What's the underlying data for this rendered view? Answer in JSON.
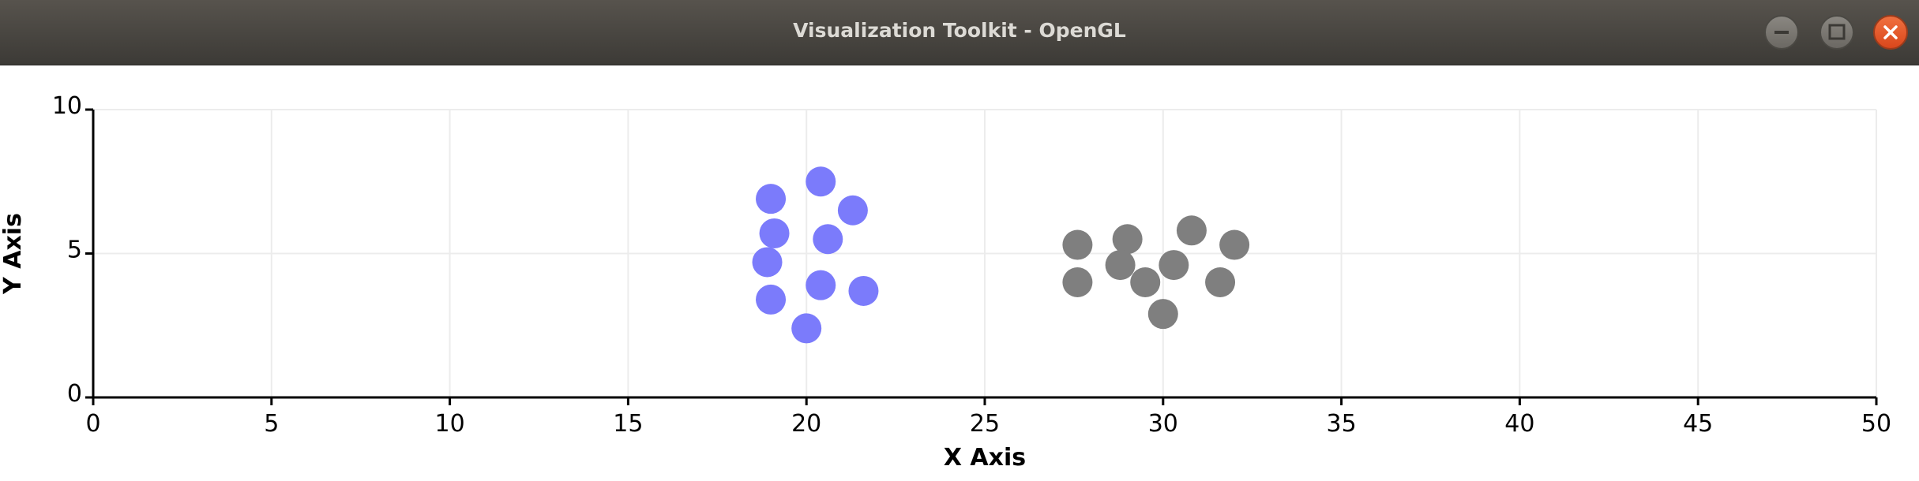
{
  "window": {
    "title": "Visualization Toolkit - OpenGL",
    "buttons": [
      "minimize",
      "maximize",
      "close"
    ]
  },
  "colors": {
    "series_1": "#7b7bfb",
    "series_2": "#7f7f7f",
    "axis": "#000000",
    "grid": "#ececec",
    "titlebar": "#4a4843",
    "close_button": "#e4572c"
  },
  "chart_data": {
    "type": "scatter",
    "title": "",
    "xlabel": "X Axis",
    "ylabel": "Y Axis",
    "xlim": [
      0,
      50
    ],
    "ylim": [
      0,
      10
    ],
    "x_ticks": [
      0,
      5,
      10,
      15,
      20,
      25,
      30,
      35,
      40,
      45,
      50
    ],
    "y_ticks": [
      0,
      5,
      10
    ],
    "grid": true,
    "series": [
      {
        "color": "#7b7bfb",
        "points": [
          {
            "x": 20.4,
            "y": 7.5
          },
          {
            "x": 19.0,
            "y": 6.9
          },
          {
            "x": 21.3,
            "y": 6.5
          },
          {
            "x": 19.1,
            "y": 5.7
          },
          {
            "x": 20.6,
            "y": 5.5
          },
          {
            "x": 18.9,
            "y": 4.7
          },
          {
            "x": 20.4,
            "y": 3.9
          },
          {
            "x": 21.6,
            "y": 3.7
          },
          {
            "x": 19.0,
            "y": 3.4
          },
          {
            "x": 20.0,
            "y": 2.4
          }
        ]
      },
      {
        "color": "#7f7f7f",
        "points": [
          {
            "x": 30.8,
            "y": 5.8
          },
          {
            "x": 29.0,
            "y": 5.5
          },
          {
            "x": 27.6,
            "y": 5.3
          },
          {
            "x": 32.0,
            "y": 5.3
          },
          {
            "x": 28.8,
            "y": 4.6
          },
          {
            "x": 30.3,
            "y": 4.6
          },
          {
            "x": 27.6,
            "y": 4.0
          },
          {
            "x": 29.5,
            "y": 4.0
          },
          {
            "x": 31.6,
            "y": 4.0
          },
          {
            "x": 30.0,
            "y": 2.9
          }
        ]
      }
    ]
  }
}
